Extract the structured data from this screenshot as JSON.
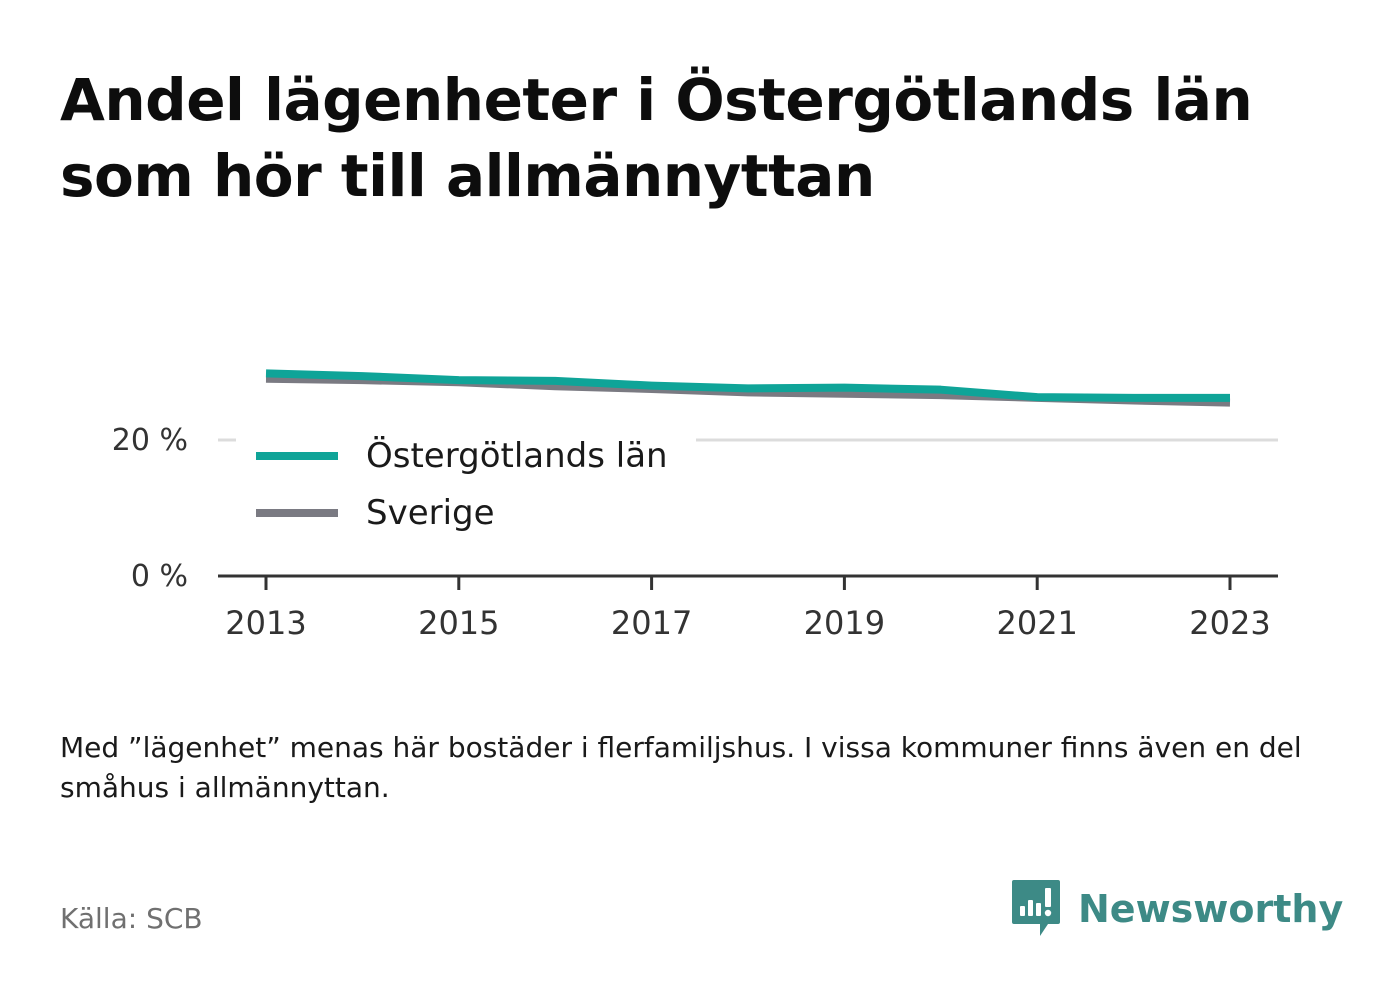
{
  "title": "Andel lägenheter i Östergötlands län som hör till allmännyttan",
  "chart_data": {
    "type": "line",
    "title": "Andel lägenheter i Östergötlands län som hör till allmännyttan",
    "xlabel": "",
    "ylabel": "",
    "x": [
      2013,
      2014,
      2015,
      2016,
      2017,
      2018,
      2019,
      2020,
      2021,
      2022,
      2023
    ],
    "x_ticks": [
      "2013",
      "2015",
      "2017",
      "2019",
      "2021",
      "2023"
    ],
    "y_ticks": [
      {
        "value": 0,
        "label": "0 %"
      },
      {
        "value": 20,
        "label": "20 %"
      }
    ],
    "ylim": [
      0,
      32
    ],
    "grid": "horizontal",
    "legend_position": "inside-left",
    "series": [
      {
        "name": "Östergötlands län",
        "color": "#0fa498",
        "values": [
          29.8,
          29.4,
          28.8,
          28.7,
          28.0,
          27.6,
          27.7,
          27.4,
          26.3,
          26.2,
          26.2
        ]
      },
      {
        "name": "Sverige",
        "color": "#7a7a82",
        "values": [
          29.0,
          28.8,
          28.5,
          27.9,
          27.5,
          27.0,
          26.8,
          26.6,
          26.2,
          25.8,
          25.5
        ]
      }
    ]
  },
  "footnote": "Med ”lägenhet” menas här bostäder i flerfamiljshus. I vissa kommuner finns även en del småhus i allmännyttan.",
  "source": "Källa: SCB",
  "brand": {
    "name": "Newsworthy",
    "icon": "newsworthy-logo-icon",
    "color": "#3d8a86"
  }
}
